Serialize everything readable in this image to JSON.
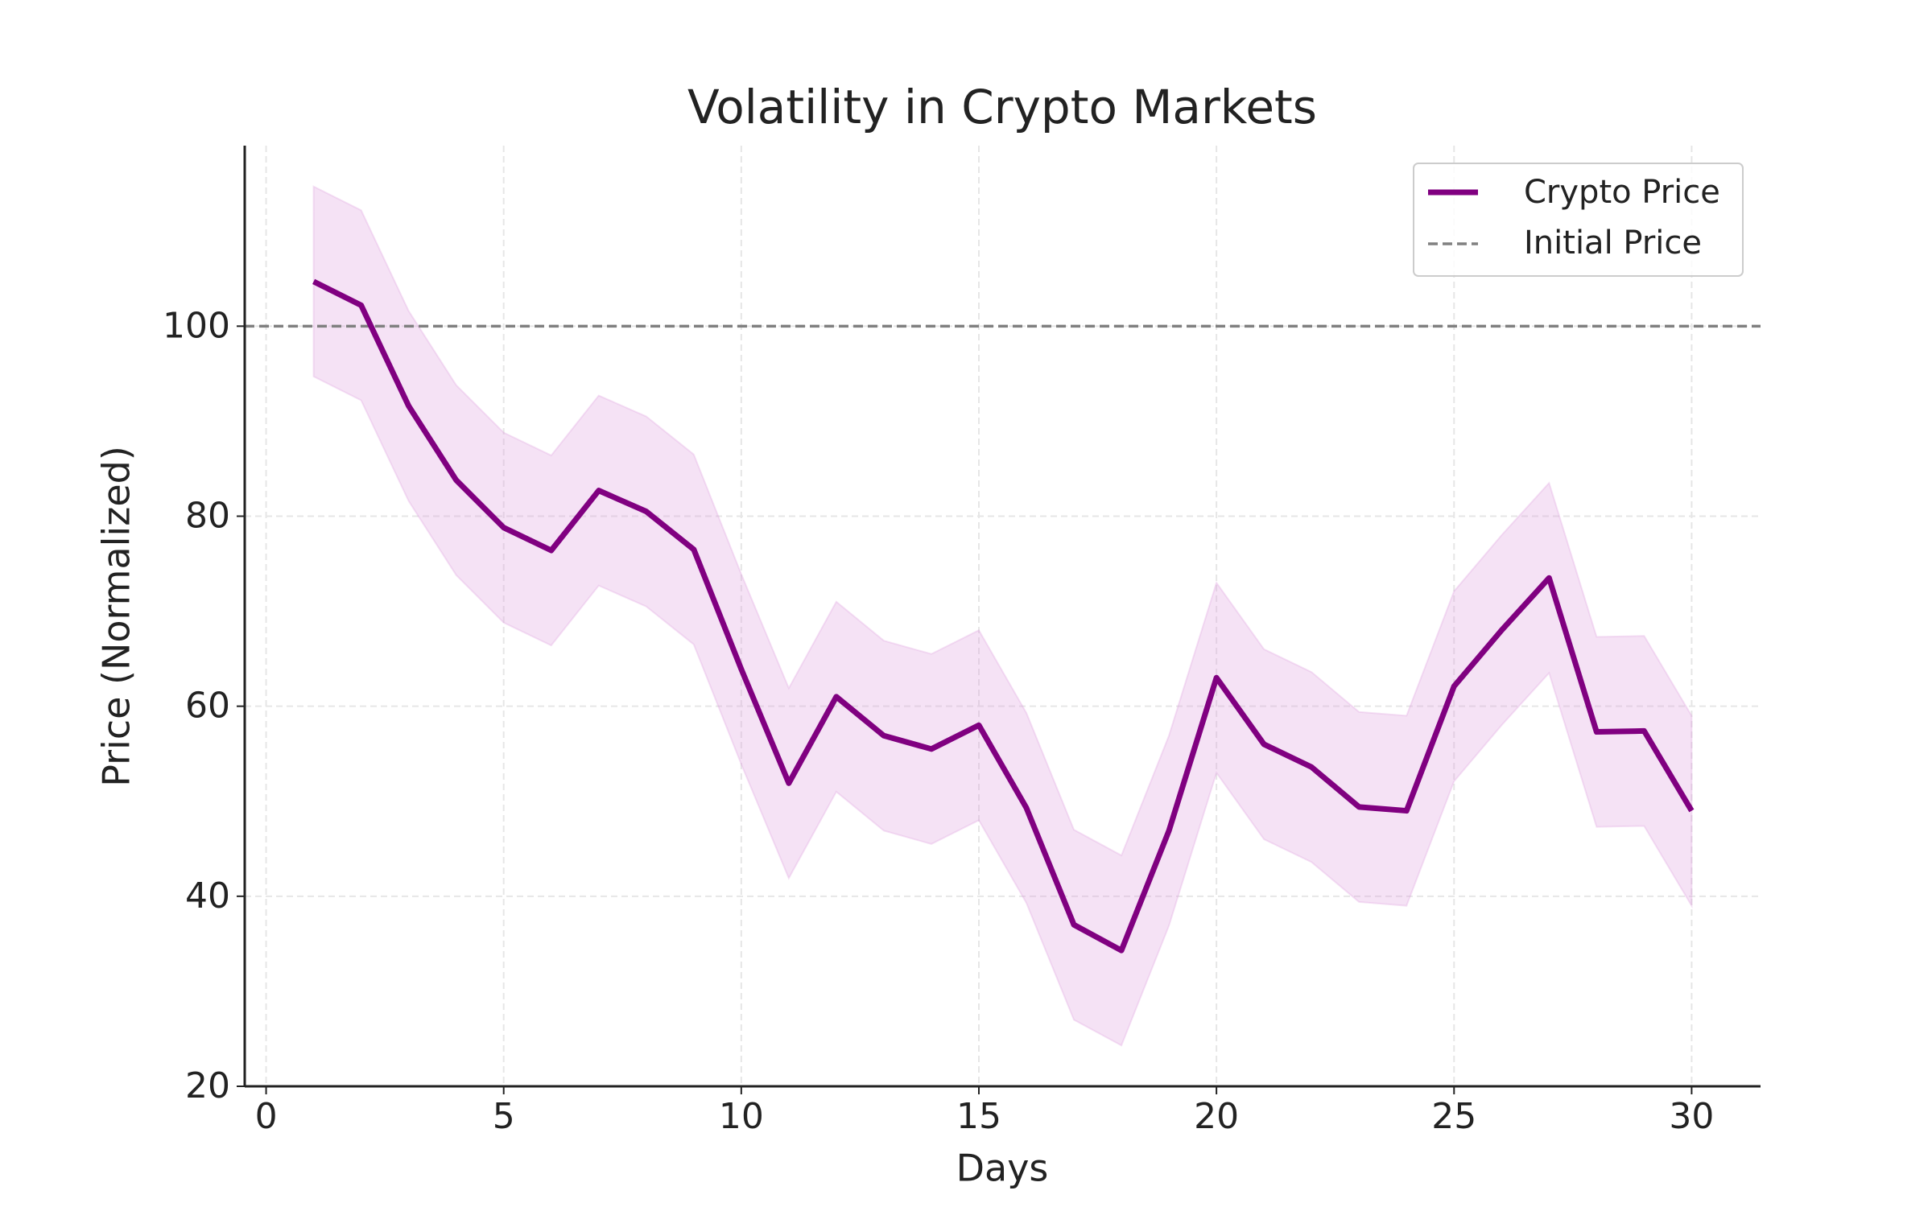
{
  "chart_data": {
    "type": "line",
    "title": "Volatility in Crypto Markets",
    "x_label": "Days",
    "y_label": "Price (Normalized)",
    "x": [
      1,
      2,
      3,
      4,
      5,
      6,
      7,
      8,
      9,
      10,
      11,
      12,
      13,
      14,
      15,
      16,
      17,
      18,
      19,
      20,
      21,
      22,
      23,
      24,
      25,
      26,
      27,
      28,
      29,
      30
    ],
    "series": [
      {
        "name": "Crypto Price",
        "color": "#800080",
        "values": [
          104.7,
          102.2,
          91.6,
          83.8,
          78.8,
          76.4,
          82.7,
          80.5,
          76.5,
          63.9,
          51.9,
          61.0,
          56.9,
          55.5,
          58.0,
          49.3,
          37.0,
          34.3,
          46.9,
          63.0,
          56.0,
          53.6,
          49.4,
          49.0,
          62.1,
          68.0,
          73.5,
          57.3,
          57.4,
          49.0
        ]
      }
    ],
    "band": {
      "color": "#dda0dd",
      "upper": [
        114.7,
        112.2,
        101.6,
        93.8,
        88.8,
        86.4,
        92.7,
        90.5,
        86.5,
        73.9,
        61.9,
        71.0,
        66.9,
        65.5,
        68.0,
        59.3,
        47.0,
        44.3,
        56.9,
        73.0,
        66.0,
        63.6,
        59.4,
        59.0,
        72.1,
        78.0,
        83.5,
        67.3,
        67.4,
        59.0
      ],
      "lower": [
        94.7,
        92.2,
        81.6,
        73.8,
        68.8,
        66.4,
        72.7,
        70.5,
        66.5,
        53.9,
        41.9,
        51.0,
        46.9,
        45.5,
        48.0,
        39.3,
        27.0,
        24.3,
        36.9,
        53.0,
        46.0,
        43.6,
        39.4,
        39.0,
        52.1,
        58.0,
        63.5,
        47.3,
        47.4,
        39.0
      ]
    },
    "hline": {
      "name": "Initial Price",
      "value": 100,
      "color": "#808080"
    },
    "xlim": [
      -0.45,
      31.45
    ],
    "ylim": [
      20,
      119
    ],
    "xticks": [
      0,
      5,
      10,
      15,
      20,
      25,
      30
    ],
    "yticks": [
      20,
      40,
      60,
      80,
      100
    ],
    "grid": true,
    "legend": "upper right"
  }
}
